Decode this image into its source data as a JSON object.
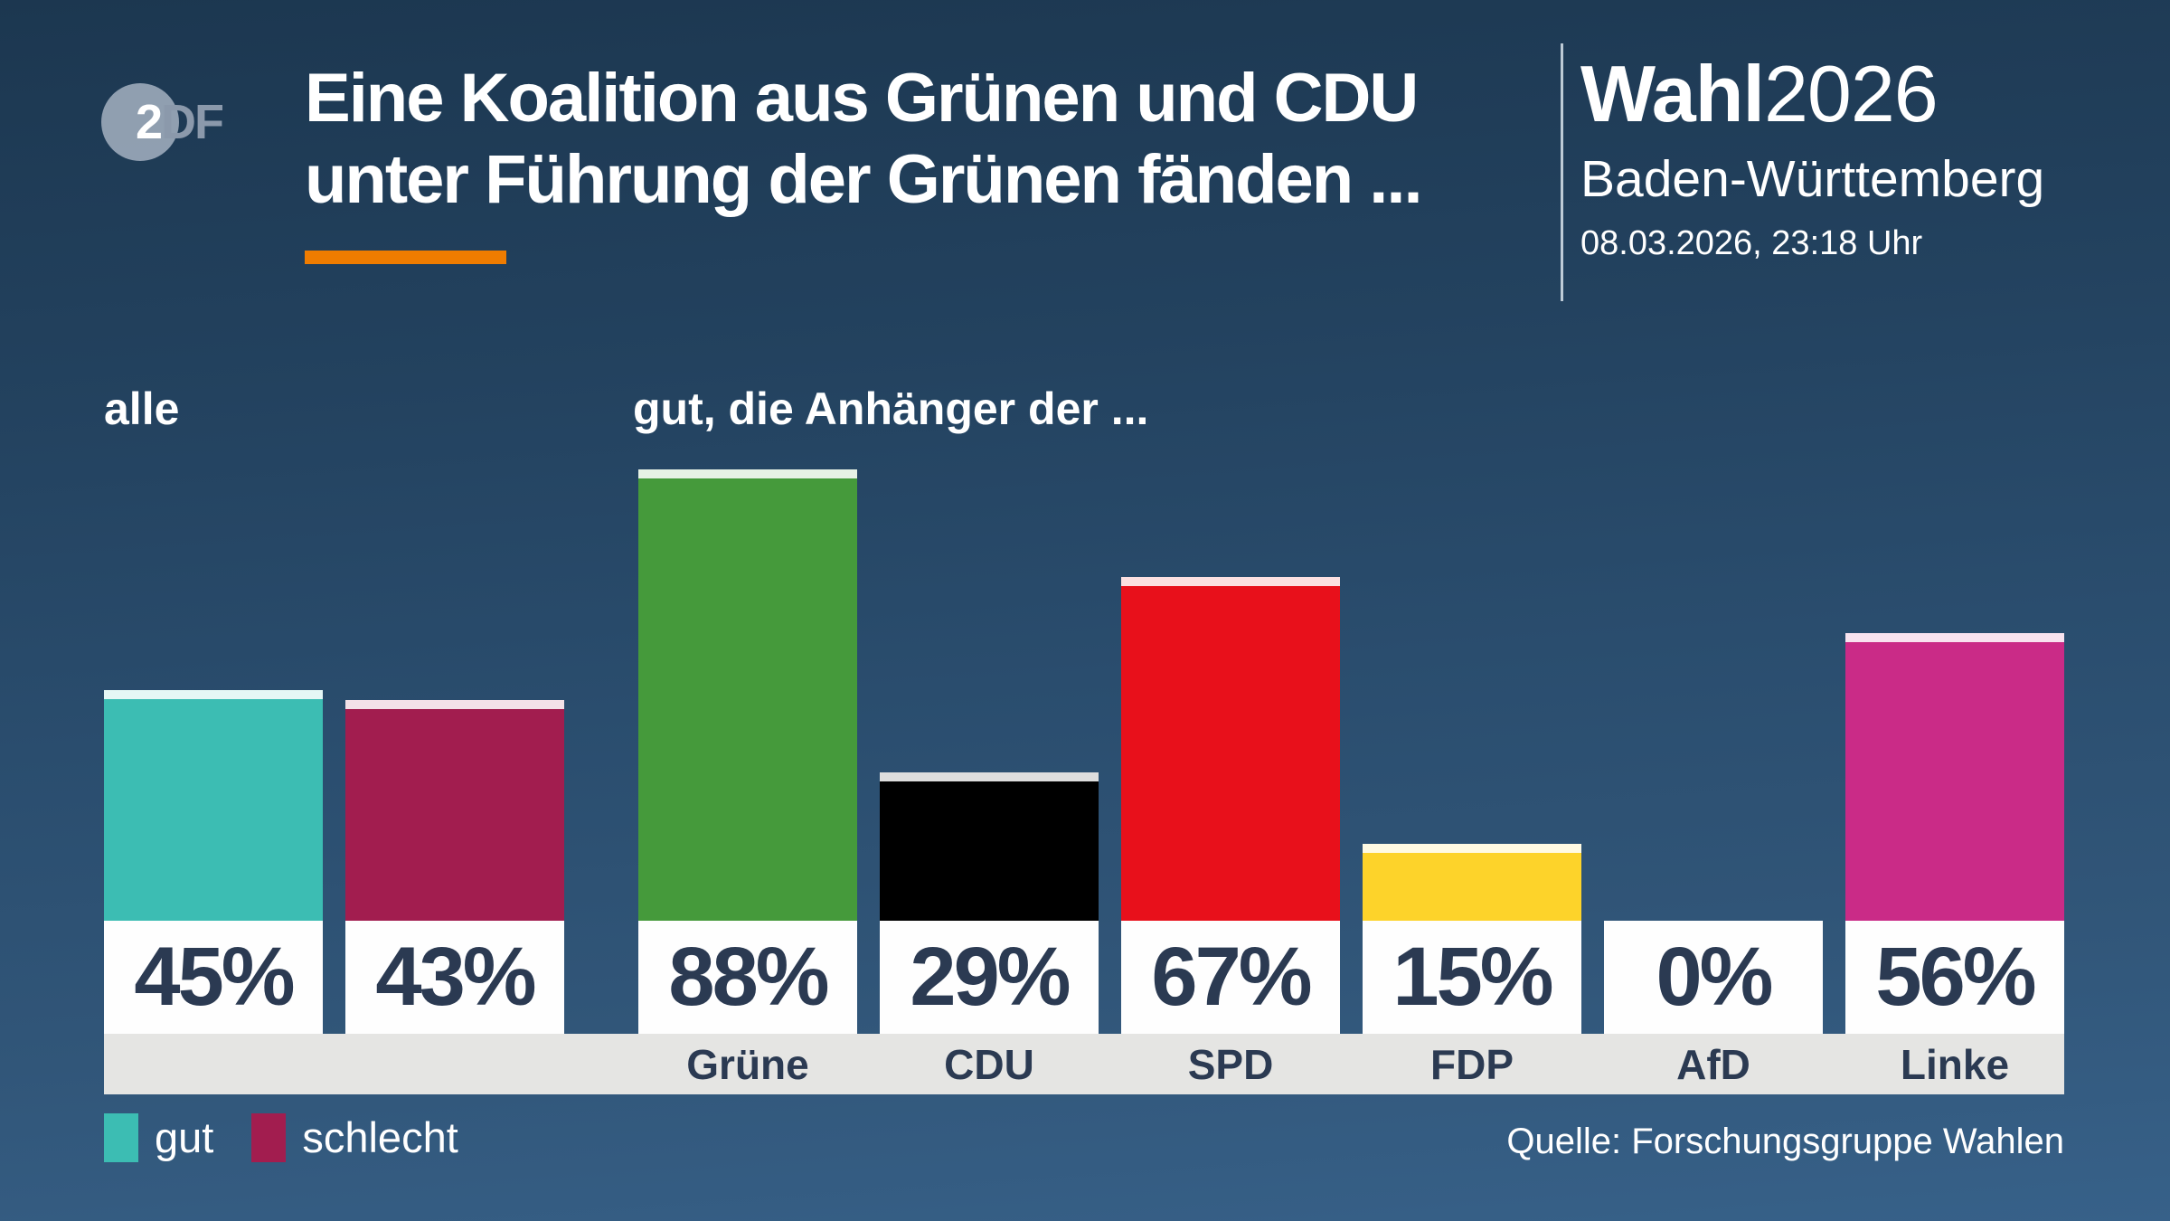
{
  "header": {
    "logo": {
      "part_2": "2",
      "part_df": "DF"
    },
    "title_line1": "Eine Koalition aus Grünen und CDU",
    "title_line2": "unter Führung der Grünen fänden ...",
    "accent_color": "#ef7c00",
    "brand": {
      "word": "Wahl",
      "year": "2026",
      "region": "Baden-Württemberg",
      "datetime": "08.03.2026, 23:18 Uhr"
    }
  },
  "chart_data": {
    "type": "bar",
    "unit": "%",
    "ylim": [
      0,
      100
    ],
    "grid": false,
    "legend_position": "bottom-left",
    "groups": [
      {
        "label": "alle",
        "bars": [
          {
            "party": "",
            "series": "gut",
            "value": 45,
            "display": "45%",
            "color": "#3cbdb3"
          },
          {
            "party": "",
            "series": "schlecht",
            "value": 43,
            "display": "43%",
            "color": "#a21d4f"
          }
        ]
      },
      {
        "label": "gut, die Anhänger der ...",
        "bars": [
          {
            "party": "Grüne",
            "series": "gut",
            "value": 88,
            "display": "88%",
            "color": "#459a3b"
          },
          {
            "party": "CDU",
            "series": "gut",
            "value": 29,
            "display": "29%",
            "color": "#000000"
          },
          {
            "party": "SPD",
            "series": "gut",
            "value": 67,
            "display": "67%",
            "color": "#e8101b"
          },
          {
            "party": "FDP",
            "series": "gut",
            "value": 15,
            "display": "15%",
            "color": "#fdd32a"
          },
          {
            "party": "AfD",
            "series": "gut",
            "value": 0,
            "display": "0%",
            "color": null
          },
          {
            "party": "Linke",
            "series": "gut",
            "value": 56,
            "display": "56%",
            "color": "#ca2b87"
          }
        ]
      }
    ],
    "legend": [
      {
        "label": "gut",
        "color": "#3cbdb3"
      },
      {
        "label": "schlecht",
        "color": "#a21d4f"
      }
    ]
  },
  "source": "Quelle: Forschungsgruppe Wahlen"
}
